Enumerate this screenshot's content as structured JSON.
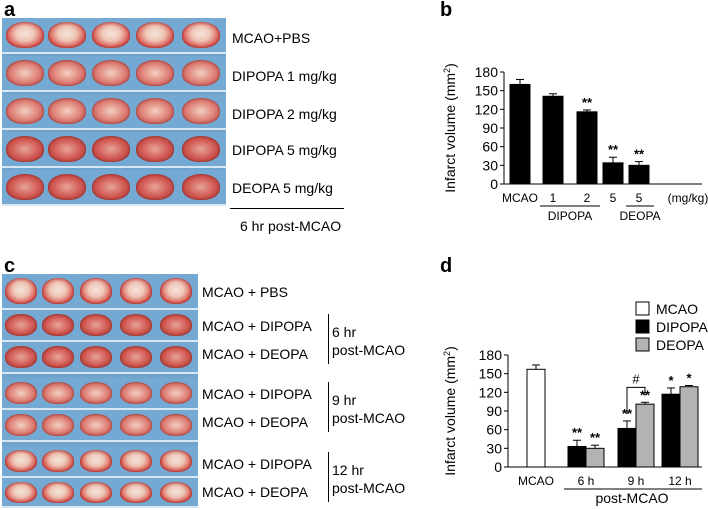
{
  "panels": {
    "a": "a",
    "b": "b",
    "c": "c",
    "d": "d"
  },
  "panel_a": {
    "rows": [
      "MCAO+PBS",
      "DIPOPA 1 mg/kg",
      "DIPOPA 2 mg/kg",
      "DIPOPA 5 mg/kg",
      "DEOPA 5 mg/kg"
    ],
    "caption": "6 hr post-MCAO"
  },
  "panel_c": {
    "rows": [
      "MCAO + PBS",
      "MCAO + DIPOPA",
      "MCAO + DEOPA",
      "MCAO + DIPOPA",
      "MCAO + DEOPA",
      "MCAO + DIPOPA",
      "MCAO + DEOPA"
    ],
    "groups": [
      {
        "line1": "6 hr",
        "line2": "post-MCAO"
      },
      {
        "line1": "9 hr",
        "line2": "post-MCAO"
      },
      {
        "line1": "12 hr",
        "line2": "post-MCAO"
      }
    ]
  },
  "chart_data": [
    {
      "type": "bar",
      "panel": "b",
      "ylabel": "Infarct volume (mm",
      "ylabel_sup": "2",
      "ylabel_end": ")",
      "ylim": [
        0,
        180
      ],
      "yticks": [
        0,
        30,
        60,
        90,
        120,
        150,
        180
      ],
      "categories": [
        "MCAO",
        "1",
        "2",
        "5",
        "5"
      ],
      "values": [
        160,
        141,
        116,
        34,
        30
      ],
      "errors": [
        8,
        4,
        3,
        9,
        6
      ],
      "annotations": [
        "",
        "",
        "**",
        "**",
        "**"
      ],
      "unit_label": "(mg/kg)",
      "group_labels": [
        {
          "label": "DIPOPA",
          "from": 1,
          "to": 3
        },
        {
          "label": "DEOPA",
          "from": 4,
          "to": 4
        }
      ],
      "bar_color": "#000000"
    },
    {
      "type": "bar",
      "panel": "d",
      "ylabel": "Infarct volume (mm",
      "ylabel_sup": "2",
      "ylabel_end": ")",
      "ylim": [
        0,
        180
      ],
      "yticks": [
        0,
        30,
        60,
        90,
        120,
        150,
        180
      ],
      "categories": [
        "MCAO",
        "6 h",
        "9 h",
        "12 h"
      ],
      "xlabel": "post-MCAO",
      "series": [
        {
          "name": "MCAO",
          "color": "#ffffff",
          "values": [
            157,
            null,
            null,
            null
          ],
          "errors": [
            7,
            null,
            null,
            null
          ],
          "stars": [
            "",
            null,
            null,
            null
          ]
        },
        {
          "name": "DIPOPA",
          "color": "#000000",
          "values": [
            null,
            33,
            62,
            117
          ],
          "errors": [
            null,
            10,
            12,
            10
          ],
          "stars": [
            null,
            "**",
            "**",
            "*"
          ]
        },
        {
          "name": "DEOPA",
          "color": "#b3b3b3",
          "values": [
            null,
            30,
            101,
            129
          ],
          "errors": [
            null,
            5,
            3,
            2
          ],
          "stars": [
            null,
            "**",
            "**",
            "*"
          ]
        }
      ],
      "bracket_label": "#"
    }
  ]
}
